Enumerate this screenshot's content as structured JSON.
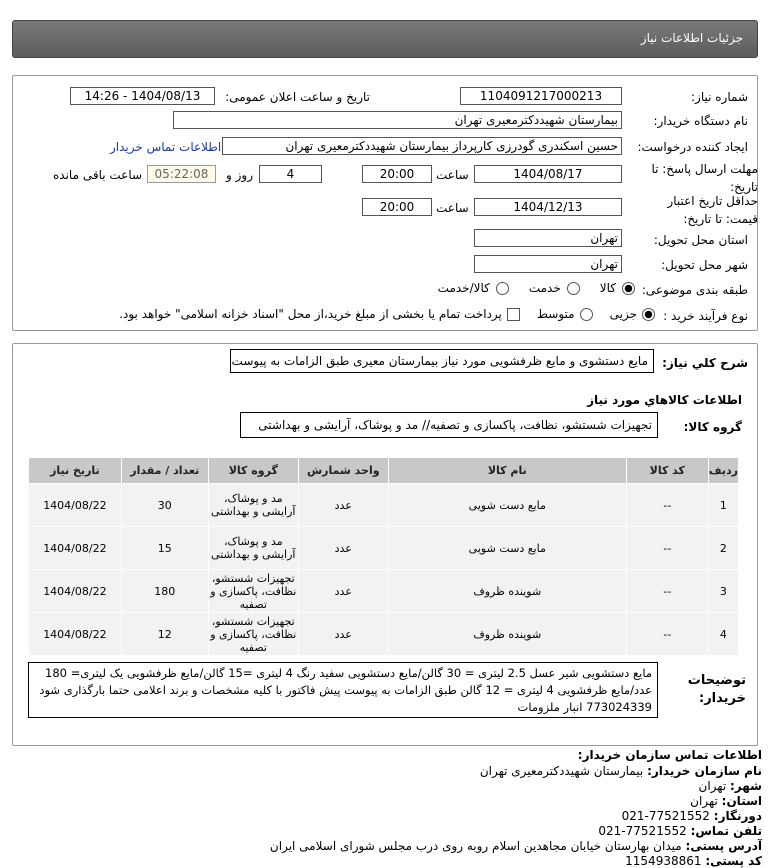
{
  "header": {
    "title": "جزئیات اطلاعات نیاز"
  },
  "form": {
    "need_number_label": "شماره نیاز:",
    "need_number": "1104091217000213",
    "announce_label": "تاریخ و ساعت اعلان عمومی:",
    "announce_value": "1404/08/13 - 14:26",
    "buyer_org_label": "نام دستگاه خریدار:",
    "buyer_org": "بیمارستان شهیددکترمعیری تهران",
    "requester_label": "ایجاد کننده درخواست:",
    "requester": "حسین اسکندری گودرزی کارپرداز بیمارستان شهیددکترمعیری تهران",
    "contact_link": "اطلاعات تماس خریدار",
    "deadline_label": "مهلت ارسال پاسخ: تا تاریخ:",
    "deadline_date": "1404/08/17",
    "hour_label": "ساعت",
    "deadline_time": "20:00",
    "days": "4",
    "days_label": "روز و",
    "countdown": "05:22:08",
    "remaining_label": "ساعت باقی مانده",
    "validity_label": "حداقل تاریخ اعتبار قیمت: تا تاریخ:",
    "validity_date": "1404/12/13",
    "validity_time": "20:00",
    "province_label": "استان محل تحویل:",
    "province": "تهران",
    "city_label": "شهر محل تحویل:",
    "city": "تهران",
    "category_label": "طبقه بندی موضوعی:",
    "category_options": [
      "کالا",
      "خدمت",
      "کالا/خدمت"
    ],
    "category_selected": "کالا",
    "process_label": "نوع فرآیند خرید :",
    "process_options": [
      "جزیی",
      "متوسط"
    ],
    "process_selected": "جزیی",
    "payment_note": "پرداخت تمام یا بخشی از مبلغ خرید،از محل \"اسناد خزانه اسلامی\" خواهد بود."
  },
  "details": {
    "summary_label": "شرح کلي نياز:",
    "summary": "مایع دستشوی و مایع ظرفشویی مورد نیاز بیمارستان معیری طبق الزامات به پیوست",
    "goods_title": "اطلاعات کالاهاي مورد نياز",
    "group_label": "گروه کالا:",
    "group": "تجهیزات شستشو، نظافت، پاکسازی و تصفیه// مد و پوشاک، آرایشی و بهداشتی",
    "columns": [
      "ردیف",
      "کد کالا",
      "نام کالا",
      "واحد شمارش",
      "گروه کالا",
      "تعداد / مقدار",
      "تاریخ نیاز"
    ],
    "rows": [
      [
        "1",
        "--",
        "مایع دست شویی",
        "عدد",
        "مد و پوشاک، آرایشی و بهداشتی",
        "30",
        "1404/08/22"
      ],
      [
        "2",
        "--",
        "مایع دست شویی",
        "عدد",
        "مد و پوشاک، آرایشی و بهداشتی",
        "15",
        "1404/08/22"
      ],
      [
        "3",
        "--",
        "شوینده ظروف",
        "عدد",
        "تجهیزات شستشو، نظافت، پاکسازی و تصفیه",
        "180",
        "1404/08/22"
      ],
      [
        "4",
        "--",
        "شوینده ظروف",
        "عدد",
        "تجهیزات شستشو، نظافت، پاکسازی و تصفیه",
        "12",
        "1404/08/22"
      ]
    ],
    "notes_label": "توضیحات خریدار:",
    "notes": "مایع دستشویی شیر عسل 2.5 لیتری = 30 گالن/مایع دستشویی سفید رنگ 4 لیتری =15 گالن/مایع ظرفشویی یک لیتری= 180 عدد/مایع ظرفشویی 4 لیتری = 12 گالن طبق الزامات به پیوست پیش فاکتور با کلیه مشخصات و برند اعلامی حتما بارگذاری شود 773024339 انبار ملزومات"
  },
  "contact": {
    "title": "اطلاعات تماس سازمان خریدار:",
    "items": [
      {
        "label": "نام سازمان خریدار:",
        "value": "بیمارستان شهیددکترمعیری تهران"
      },
      {
        "label": "شهر:",
        "value": "تهران"
      },
      {
        "label": "استان:",
        "value": "تهران"
      },
      {
        "label": "دورنگار:",
        "value": "77521552-021"
      },
      {
        "label": "تلفن تماس:",
        "value": "77521552-021"
      },
      {
        "label": "آدرس پستی:",
        "value": "میدان بهارستان خیابان مجاهدین اسلام روبه روی درب مجلس شورای اسلامی ایران"
      },
      {
        "label": "کد پستی:",
        "value": "1154938861"
      }
    ]
  }
}
